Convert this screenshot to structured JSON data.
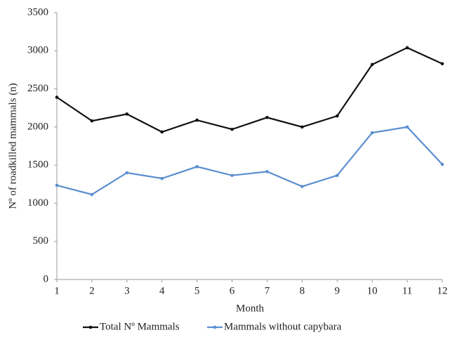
{
  "chart_data": {
    "type": "line",
    "x": [
      1,
      2,
      3,
      4,
      5,
      6,
      7,
      8,
      9,
      10,
      11,
      12
    ],
    "xlim": [
      1,
      12
    ],
    "xticks": [
      1,
      2,
      3,
      4,
      5,
      6,
      7,
      8,
      9,
      10,
      11,
      12
    ],
    "ylim": [
      0,
      3500
    ],
    "yticks": [
      0,
      500,
      1000,
      1500,
      2000,
      2500,
      3000,
      3500
    ],
    "x_label": "Month",
    "y_label": "Nº of roadkilled mammals (n)",
    "grid": false,
    "legend": "bottom",
    "series": [
      {
        "name": "Total Nº Mammals",
        "color": "#111111",
        "values": [
          2390,
          2080,
          2170,
          1935,
          2090,
          1970,
          2125,
          2000,
          2145,
          2820,
          3040,
          2830
        ]
      },
      {
        "name": "Mammals without capybara",
        "color": "#5b8fd0",
        "values": [
          1235,
          1115,
          1400,
          1325,
          1480,
          1365,
          1415,
          1220,
          1365,
          1925,
          2000,
          1510
        ]
      }
    ]
  }
}
